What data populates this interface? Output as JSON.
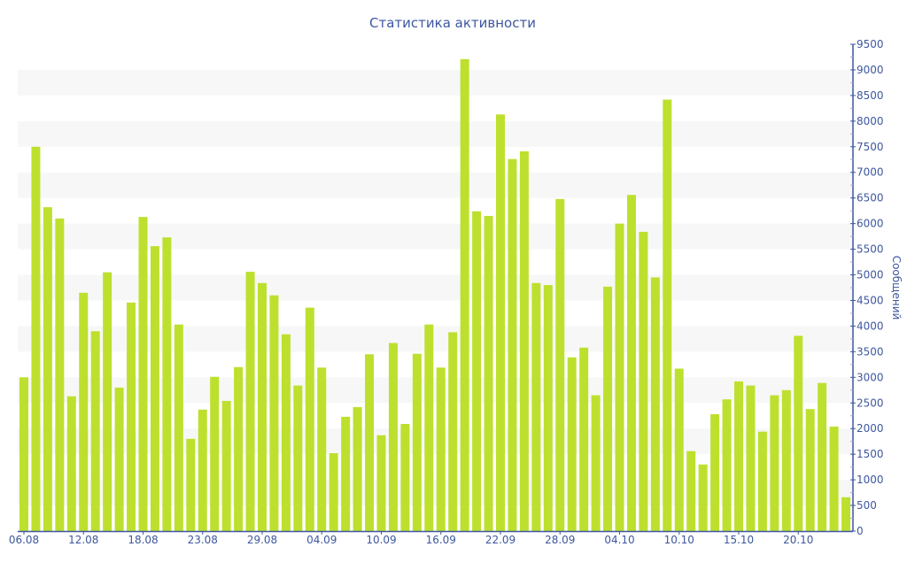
{
  "chart_data": {
    "type": "bar",
    "title": "Статистика активности",
    "ylabel": "Сообщений",
    "xlabel": "",
    "ylim": [
      0,
      9500
    ],
    "y_ticks": [
      0,
      500,
      1000,
      1500,
      2000,
      2500,
      3000,
      3500,
      4000,
      4500,
      5000,
      5500,
      6000,
      6500,
      7000,
      7500,
      8000,
      8500,
      9000,
      9500
    ],
    "y_axis_side": "right",
    "grid": "alternating horizontal bands",
    "x_tick_labels": [
      {
        "bar_index": 0,
        "label": "06.08"
      },
      {
        "bar_index": 5,
        "label": "12.08"
      },
      {
        "bar_index": 10,
        "label": "18.08"
      },
      {
        "bar_index": 15,
        "label": "23.08"
      },
      {
        "bar_index": 20,
        "label": "29.08"
      },
      {
        "bar_index": 25,
        "label": "04.09"
      },
      {
        "bar_index": 30,
        "label": "10.09"
      },
      {
        "bar_index": 35,
        "label": "16.09"
      },
      {
        "bar_index": 40,
        "label": "22.09"
      },
      {
        "bar_index": 45,
        "label": "28.09"
      },
      {
        "bar_index": 50,
        "label": "04.10"
      },
      {
        "bar_index": 55,
        "label": "10.10"
      },
      {
        "bar_index": 60,
        "label": "15.10"
      },
      {
        "bar_index": 65,
        "label": "20.10"
      }
    ],
    "values": [
      3000,
      7500,
      6320,
      6100,
      2630,
      4650,
      3900,
      5050,
      2800,
      4460,
      6130,
      5560,
      5730,
      4030,
      1800,
      2370,
      3010,
      2540,
      3200,
      5060,
      4840,
      4600,
      3840,
      2840,
      4360,
      3190,
      1520,
      2230,
      2420,
      3450,
      1870,
      3670,
      2090,
      3460,
      4030,
      3190,
      3880,
      9210,
      6240,
      6150,
      8130,
      7260,
      7410,
      4840,
      4800,
      6480,
      3390,
      3580,
      2650,
      4770,
      6000,
      6560,
      5840,
      4950,
      8420,
      3170,
      1560,
      1300,
      2280,
      2570,
      2920,
      2840,
      1940,
      2650,
      2750,
      3810,
      2380,
      2890,
      2040,
      660
    ],
    "colors": {
      "bar": "#bde02e",
      "axis": "#3e57a0",
      "band": "#f7f7f7"
    }
  }
}
